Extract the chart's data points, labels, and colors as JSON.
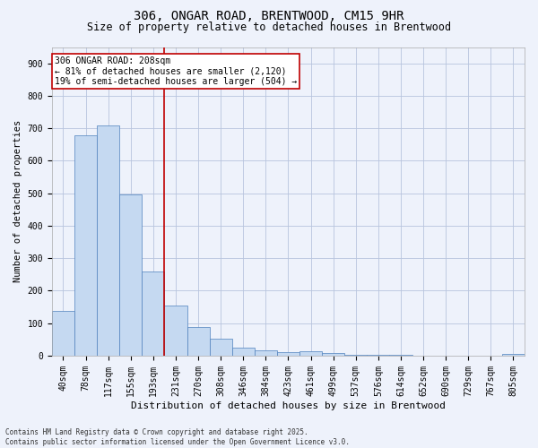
{
  "title_line1": "306, ONGAR ROAD, BRENTWOOD, CM15 9HR",
  "title_line2": "Size of property relative to detached houses in Brentwood",
  "xlabel": "Distribution of detached houses by size in Brentwood",
  "ylabel": "Number of detached properties",
  "categories": [
    "40sqm",
    "78sqm",
    "117sqm",
    "155sqm",
    "193sqm",
    "231sqm",
    "270sqm",
    "308sqm",
    "346sqm",
    "384sqm",
    "423sqm",
    "461sqm",
    "499sqm",
    "537sqm",
    "576sqm",
    "614sqm",
    "652sqm",
    "690sqm",
    "729sqm",
    "767sqm",
    "805sqm"
  ],
  "values": [
    138,
    678,
    710,
    497,
    258,
    155,
    87,
    52,
    24,
    16,
    10,
    14,
    8,
    3,
    2,
    2,
    1,
    1,
    1,
    0,
    5
  ],
  "bar_color": "#c5d9f1",
  "bar_edge_color": "#4f81bd",
  "vline_x": 4.5,
  "vline_color": "#c00000",
  "annotation_text": "306 ONGAR ROAD: 208sqm\n← 81% of detached houses are smaller (2,120)\n19% of semi-detached houses are larger (504) →",
  "annotation_box_color": "#c00000",
  "ylim": [
    0,
    950
  ],
  "yticks": [
    0,
    100,
    200,
    300,
    400,
    500,
    600,
    700,
    800,
    900
  ],
  "footer_line1": "Contains HM Land Registry data © Crown copyright and database right 2025.",
  "footer_line2": "Contains public sector information licensed under the Open Government Licence v3.0.",
  "background_color": "#eef2fb",
  "grid_color": "#b8c4de",
  "title1_fontsize": 10,
  "title2_fontsize": 8.5,
  "tick_fontsize": 7,
  "ylabel_fontsize": 7.5,
  "xlabel_fontsize": 8,
  "ann_fontsize": 7,
  "footer_fontsize": 5.5
}
